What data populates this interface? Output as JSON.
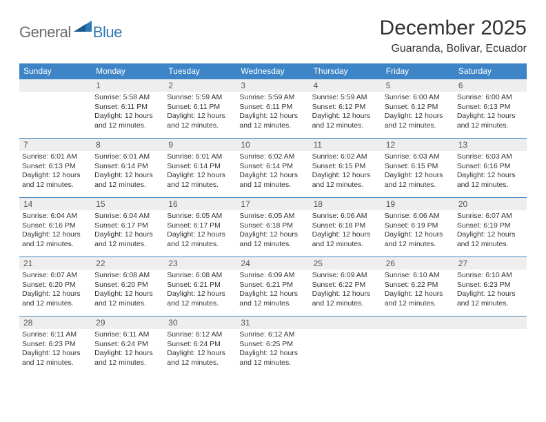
{
  "brand": {
    "general": "General",
    "blue": "Blue"
  },
  "title": "December 2025",
  "location": "Guaranda, Bolivar, Ecuador",
  "colors": {
    "header_bg": "#3d85c6",
    "header_text": "#ffffff",
    "daynum_bg": "#eeeeee",
    "border": "#3d85c6",
    "text": "#333333",
    "logo_gray": "#6a6a6a",
    "logo_blue": "#2f78b7"
  },
  "weekdays": [
    "Sunday",
    "Monday",
    "Tuesday",
    "Wednesday",
    "Thursday",
    "Friday",
    "Saturday"
  ],
  "layout": {
    "first_weekday_index": 1,
    "days_in_month": 31
  },
  "days": {
    "1": {
      "sunrise": "5:58 AM",
      "sunset": "6:11 PM",
      "daylight": "12 hours and 12 minutes."
    },
    "2": {
      "sunrise": "5:59 AM",
      "sunset": "6:11 PM",
      "daylight": "12 hours and 12 minutes."
    },
    "3": {
      "sunrise": "5:59 AM",
      "sunset": "6:11 PM",
      "daylight": "12 hours and 12 minutes."
    },
    "4": {
      "sunrise": "5:59 AM",
      "sunset": "6:12 PM",
      "daylight": "12 hours and 12 minutes."
    },
    "5": {
      "sunrise": "6:00 AM",
      "sunset": "6:12 PM",
      "daylight": "12 hours and 12 minutes."
    },
    "6": {
      "sunrise": "6:00 AM",
      "sunset": "6:13 PM",
      "daylight": "12 hours and 12 minutes."
    },
    "7": {
      "sunrise": "6:01 AM",
      "sunset": "6:13 PM",
      "daylight": "12 hours and 12 minutes."
    },
    "8": {
      "sunrise": "6:01 AM",
      "sunset": "6:14 PM",
      "daylight": "12 hours and 12 minutes."
    },
    "9": {
      "sunrise": "6:01 AM",
      "sunset": "6:14 PM",
      "daylight": "12 hours and 12 minutes."
    },
    "10": {
      "sunrise": "6:02 AM",
      "sunset": "6:14 PM",
      "daylight": "12 hours and 12 minutes."
    },
    "11": {
      "sunrise": "6:02 AM",
      "sunset": "6:15 PM",
      "daylight": "12 hours and 12 minutes."
    },
    "12": {
      "sunrise": "6:03 AM",
      "sunset": "6:15 PM",
      "daylight": "12 hours and 12 minutes."
    },
    "13": {
      "sunrise": "6:03 AM",
      "sunset": "6:16 PM",
      "daylight": "12 hours and 12 minutes."
    },
    "14": {
      "sunrise": "6:04 AM",
      "sunset": "6:16 PM",
      "daylight": "12 hours and 12 minutes."
    },
    "15": {
      "sunrise": "6:04 AM",
      "sunset": "6:17 PM",
      "daylight": "12 hours and 12 minutes."
    },
    "16": {
      "sunrise": "6:05 AM",
      "sunset": "6:17 PM",
      "daylight": "12 hours and 12 minutes."
    },
    "17": {
      "sunrise": "6:05 AM",
      "sunset": "6:18 PM",
      "daylight": "12 hours and 12 minutes."
    },
    "18": {
      "sunrise": "6:06 AM",
      "sunset": "6:18 PM",
      "daylight": "12 hours and 12 minutes."
    },
    "19": {
      "sunrise": "6:06 AM",
      "sunset": "6:19 PM",
      "daylight": "12 hours and 12 minutes."
    },
    "20": {
      "sunrise": "6:07 AM",
      "sunset": "6:19 PM",
      "daylight": "12 hours and 12 minutes."
    },
    "21": {
      "sunrise": "6:07 AM",
      "sunset": "6:20 PM",
      "daylight": "12 hours and 12 minutes."
    },
    "22": {
      "sunrise": "6:08 AM",
      "sunset": "6:20 PM",
      "daylight": "12 hours and 12 minutes."
    },
    "23": {
      "sunrise": "6:08 AM",
      "sunset": "6:21 PM",
      "daylight": "12 hours and 12 minutes."
    },
    "24": {
      "sunrise": "6:09 AM",
      "sunset": "6:21 PM",
      "daylight": "12 hours and 12 minutes."
    },
    "25": {
      "sunrise": "6:09 AM",
      "sunset": "6:22 PM",
      "daylight": "12 hours and 12 minutes."
    },
    "26": {
      "sunrise": "6:10 AM",
      "sunset": "6:22 PM",
      "daylight": "12 hours and 12 minutes."
    },
    "27": {
      "sunrise": "6:10 AM",
      "sunset": "6:23 PM",
      "daylight": "12 hours and 12 minutes."
    },
    "28": {
      "sunrise": "6:11 AM",
      "sunset": "6:23 PM",
      "daylight": "12 hours and 12 minutes."
    },
    "29": {
      "sunrise": "6:11 AM",
      "sunset": "6:24 PM",
      "daylight": "12 hours and 12 minutes."
    },
    "30": {
      "sunrise": "6:12 AM",
      "sunset": "6:24 PM",
      "daylight": "12 hours and 12 minutes."
    },
    "31": {
      "sunrise": "6:12 AM",
      "sunset": "6:25 PM",
      "daylight": "12 hours and 12 minutes."
    }
  },
  "labels": {
    "sunrise": "Sunrise: ",
    "sunset": "Sunset: ",
    "daylight": "Daylight: "
  }
}
